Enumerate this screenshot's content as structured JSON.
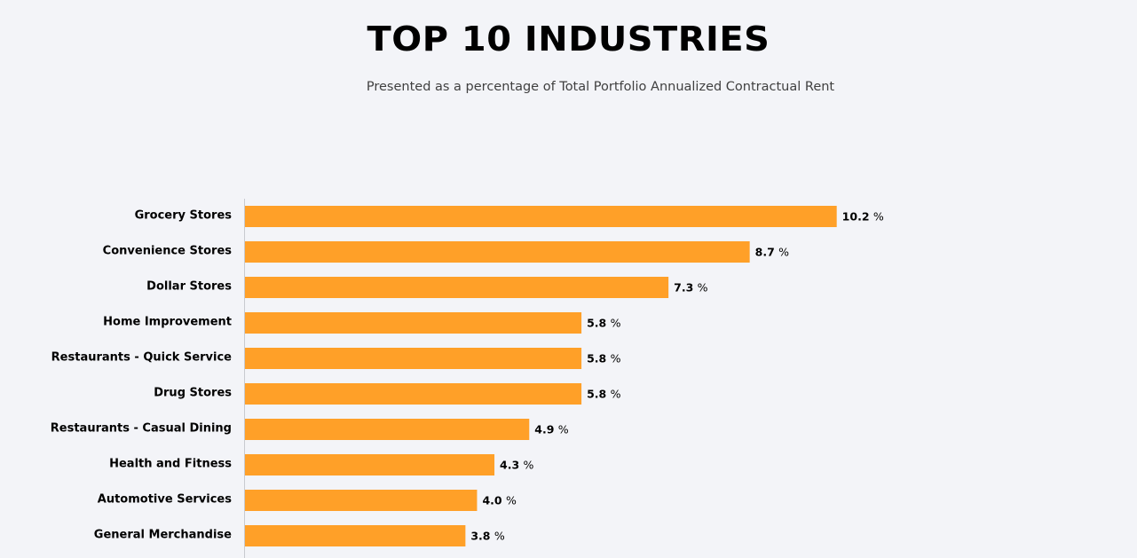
{
  "chart_data": {
    "type": "bar",
    "orientation": "horizontal",
    "title": "TOP 10 INDUSTRIES",
    "subtitle": "Presented as a percentage of Total Portfolio Annualized Contractual Rent",
    "categories": [
      "Grocery Stores",
      "Convenience Stores",
      "Dollar Stores",
      "Home Improvement",
      "Restaurants - Quick Service",
      "Drug Stores",
      "Restaurants - Casual Dining",
      "Health and Fitness",
      "Automotive Services",
      "General Merchandise"
    ],
    "values": [
      10.2,
      8.7,
      7.3,
      5.8,
      5.8,
      5.8,
      4.9,
      4.3,
      4.0,
      3.8
    ],
    "value_labels": [
      "10.2",
      "8.7",
      "7.3",
      "5.8",
      "5.8",
      "5.8",
      "4.9",
      "4.3",
      "4.0",
      "3.8"
    ],
    "value_suffix": "%",
    "xlim": [
      0,
      16.6
    ],
    "bar_color": "#ffa028",
    "xlabel": "",
    "ylabel": "",
    "grid": false,
    "legend": "none"
  }
}
